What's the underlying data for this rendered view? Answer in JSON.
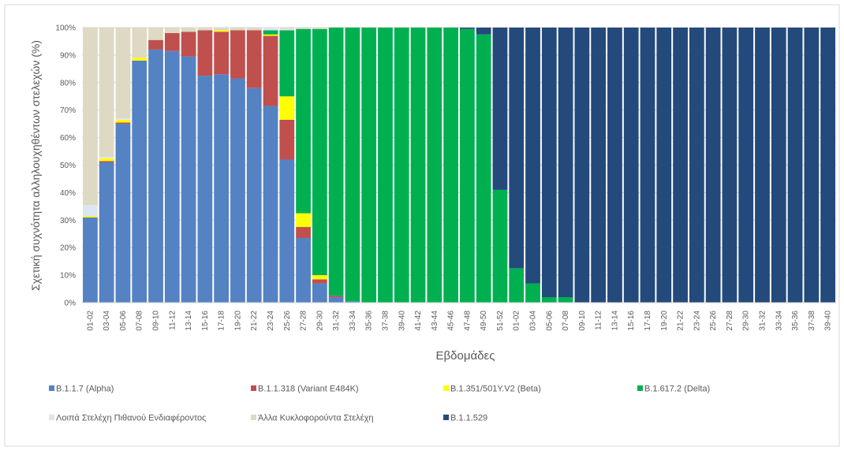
{
  "chart_data": {
    "type": "stacked-bar",
    "y_label": "Σχετική συχνότητα αλληλουχηθέντων στελεχών (%)",
    "x_label": "Εβδομάδες",
    "categories": [
      "01-02",
      "03-04",
      "05-06",
      "07-08",
      "09-10",
      "11-12",
      "13-14",
      "15-16",
      "17-18",
      "19-20",
      "21-22",
      "23-24",
      "25-26",
      "27-28",
      "29-30",
      "31-32",
      "33-34",
      "35-36",
      "37-38",
      "39-40",
      "41-42",
      "43-44",
      "45-46",
      "47-48",
      "49-50",
      "51-52",
      "01-02",
      "03-04",
      "05-06",
      "07-08",
      "09-10",
      "11-12",
      "13-14",
      "15-16",
      "17-18",
      "19-20",
      "21-22",
      "23-24",
      "25-26",
      "27-28",
      "29-30",
      "31-32",
      "33-34",
      "35-36",
      "37-38",
      "39-40"
    ],
    "ylim": [
      0,
      100
    ],
    "yticks": [
      {
        "value": 0,
        "label": "0%"
      },
      {
        "value": 10,
        "label": "10%"
      },
      {
        "value": 20,
        "label": "20%"
      },
      {
        "value": 30,
        "label": "30%"
      },
      {
        "value": 40,
        "label": "40%"
      },
      {
        "value": 50,
        "label": "50%"
      },
      {
        "value": 60,
        "label": "60%"
      },
      {
        "value": 70,
        "label": "70%"
      },
      {
        "value": 80,
        "label": "80%"
      },
      {
        "value": 90,
        "label": "90%"
      },
      {
        "value": 100,
        "label": "100%"
      }
    ],
    "grid": true,
    "series": [
      {
        "name": "B.1.1.7 (Alpha)",
        "color": "#5482c3",
        "values": [
          31,
          51,
          65,
          88,
          92,
          91.5,
          89.5,
          82.5,
          83,
          81.5,
          78,
          71.5,
          52,
          23.5,
          7,
          2,
          0.5,
          0,
          0,
          0,
          0,
          0,
          0,
          0,
          0,
          0,
          0,
          0,
          0,
          0,
          0,
          0,
          0,
          0,
          0,
          0,
          0,
          0,
          0,
          0,
          0,
          0,
          0,
          0,
          0,
          0
        ]
      },
      {
        "name": "B.1.1.318 (Variant E484K)",
        "color": "#c0504d",
        "values": [
          0,
          0.5,
          0.5,
          0,
          3.5,
          6.5,
          9,
          16.5,
          15.5,
          17.5,
          21,
          25.5,
          14.5,
          4,
          1.5,
          0.5,
          0,
          0,
          0,
          0,
          0,
          0,
          0,
          0,
          0,
          0,
          0,
          0,
          0,
          0,
          0,
          0,
          0,
          0,
          0,
          0,
          0,
          0,
          0,
          0,
          0,
          0,
          0,
          0,
          0,
          0
        ]
      },
      {
        "name": "B.1.351/501Y.V2 (Beta)",
        "color": "#ffff00",
        "values": [
          0.5,
          1,
          1,
          1,
          0,
          0,
          0,
          0,
          0.5,
          0,
          0,
          0.5,
          8.5,
          5,
          1.5,
          0,
          0,
          0,
          0,
          0,
          0,
          0,
          0,
          0,
          0,
          0,
          0,
          0,
          0,
          0,
          0,
          0,
          0,
          0,
          0,
          0,
          0,
          0,
          0,
          0,
          0,
          0,
          0,
          0,
          0,
          0
        ]
      },
      {
        "name": "B.1.617.2 (Delta)",
        "color": "#00b050",
        "values": [
          0,
          0,
          0,
          0,
          0,
          0,
          0,
          0,
          0,
          0,
          0,
          1.5,
          24,
          67,
          89.5,
          97.5,
          99.5,
          100,
          100,
          100,
          100,
          100,
          100,
          99.5,
          97.5,
          41,
          12.5,
          7,
          2,
          2,
          0,
          0,
          0,
          0,
          0,
          0,
          0,
          0,
          0,
          0,
          0,
          0,
          0,
          0,
          0,
          0
        ]
      },
      {
        "name": "Λοιπά Στελέχη Πιθανού Ενδιαφέροντος",
        "color": "#dce6f2",
        "values": [
          4,
          0.5,
          0.5,
          0,
          0,
          0,
          0,
          0,
          0,
          0,
          0,
          1,
          0.5,
          0,
          0,
          0,
          0,
          0,
          0,
          0,
          0,
          0,
          0,
          0,
          0,
          0,
          0,
          0,
          0,
          0,
          0,
          0,
          0,
          0,
          0,
          0,
          0,
          0,
          0,
          0,
          0,
          0,
          0,
          0,
          0,
          0
        ]
      },
      {
        "name": "Άλλα Κυκλοφορούντα Στελέχη",
        "color": "#ddd9c3",
        "values": [
          64.5,
          47,
          33,
          11,
          4.5,
          2,
          1.5,
          1,
          1,
          1,
          1,
          0,
          0.5,
          0.5,
          0.5,
          0,
          0,
          0,
          0,
          0,
          0,
          0,
          0,
          0,
          0,
          0,
          0,
          0,
          0,
          0,
          0,
          0,
          0,
          0,
          0,
          0,
          0,
          0,
          0,
          0,
          0,
          0,
          0,
          0,
          0,
          0
        ]
      },
      {
        "name": "B.1.1.529",
        "color": "#244a7c",
        "values": [
          0,
          0,
          0,
          0,
          0,
          0,
          0,
          0,
          0,
          0,
          0,
          0,
          0,
          0,
          0,
          0,
          0,
          0,
          0,
          0,
          0,
          0,
          0,
          0.5,
          2.5,
          59,
          87.5,
          93,
          98,
          98,
          100,
          100,
          100,
          100,
          100,
          100,
          100,
          100,
          100,
          100,
          100,
          100,
          100,
          100,
          100,
          100
        ]
      }
    ]
  }
}
